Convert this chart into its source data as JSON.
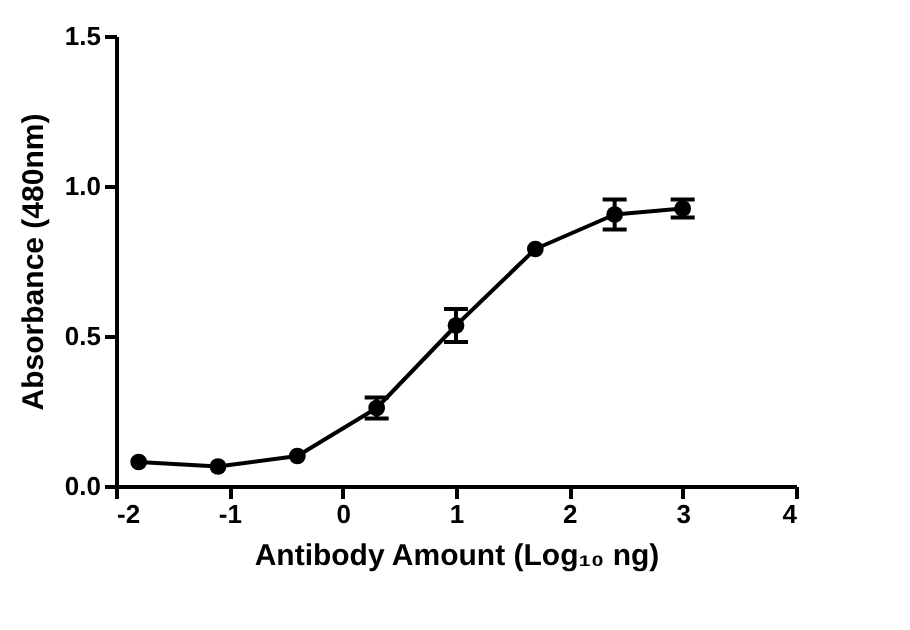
{
  "chart_data": {
    "type": "line",
    "xlabel": "Antibody Amount (Log₁₀ ng)",
    "ylabel": "Absorbance (480nm)",
    "x": [
      -1.8,
      -1.1,
      -0.4,
      0.3,
      1.0,
      1.7,
      2.4,
      3.0
    ],
    "series": [
      {
        "color": "#000000",
        "values": [
          0.08,
          0.065,
          0.1,
          0.26,
          0.535,
          0.79,
          0.905,
          0.925
        ],
        "errors": [
          null,
          null,
          null,
          0.035,
          0.055,
          null,
          0.05,
          0.03
        ]
      }
    ],
    "xlim": [
      -2,
      4
    ],
    "xticks": [
      -2,
      -1,
      0,
      1,
      2,
      3,
      4
    ],
    "ylim": [
      0,
      1.5
    ],
    "yticks": [
      {
        "value": 0,
        "label": "0.0"
      },
      0.5,
      {
        "value": 1,
        "label": "1.0"
      },
      1.5
    ],
    "grid": false,
    "marker": "circle",
    "line_style": "solid"
  }
}
